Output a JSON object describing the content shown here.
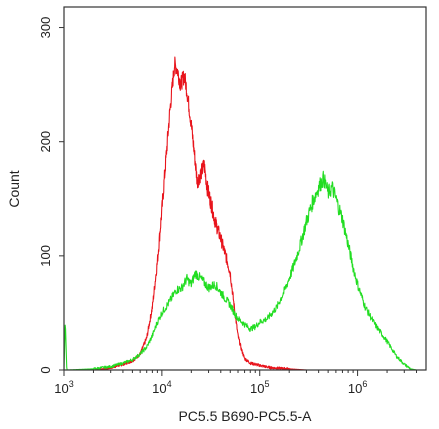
{
  "chart_data": {
    "type": "line",
    "title": "",
    "xlabel": "PC5.5 B690-PC5.5-A",
    "ylabel": "Count",
    "x_scale": "log10",
    "xlim": [
      1000,
      5000000
    ],
    "ylim": [
      0,
      318
    ],
    "x_ticks": [
      {
        "value": 1000,
        "base": "10",
        "exp": "3"
      },
      {
        "value": 10000,
        "base": "10",
        "exp": "4"
      },
      {
        "value": 100000,
        "base": "10",
        "exp": "5"
      },
      {
        "value": 1000000,
        "base": "10",
        "exp": "6"
      }
    ],
    "y_ticks": [
      {
        "value": 0,
        "label": "0"
      },
      {
        "value": 100,
        "label": "100"
      },
      {
        "value": 200,
        "label": "200"
      },
      {
        "value": 300,
        "label": "300"
      }
    ],
    "grid": false,
    "legend": "none",
    "series": [
      {
        "color": "#e8141c",
        "points": [
          [
            2000,
            0
          ],
          [
            3000,
            2
          ],
          [
            4000,
            5
          ],
          [
            5000,
            8
          ],
          [
            6000,
            14
          ],
          [
            7000,
            28
          ],
          [
            8000,
            55
          ],
          [
            9000,
            95
          ],
          [
            10000,
            140
          ],
          [
            11000,
            185
          ],
          [
            12000,
            225
          ],
          [
            13000,
            255
          ],
          [
            13500,
            268
          ],
          [
            14500,
            262
          ],
          [
            15500,
            250
          ],
          [
            17000,
            258
          ],
          [
            18000,
            245
          ],
          [
            19000,
            230
          ],
          [
            20000,
            215
          ],
          [
            21500,
            190
          ],
          [
            23000,
            165
          ],
          [
            25000,
            172
          ],
          [
            27000,
            180
          ],
          [
            29000,
            160
          ],
          [
            32000,
            145
          ],
          [
            35000,
            130
          ],
          [
            40000,
            115
          ],
          [
            45000,
            100
          ],
          [
            50000,
            85
          ],
          [
            55000,
            55
          ],
          [
            60000,
            30
          ],
          [
            65000,
            18
          ],
          [
            70000,
            10
          ],
          [
            80000,
            6
          ],
          [
            100000,
            4
          ],
          [
            130000,
            2
          ],
          [
            200000,
            1
          ],
          [
            300000,
            0
          ]
        ]
      },
      {
        "color": "#22dd22",
        "points": [
          [
            1000,
            0
          ],
          [
            1030,
            42
          ],
          [
            1070,
            0
          ],
          [
            2000,
            1
          ],
          [
            3000,
            3
          ],
          [
            4000,
            6
          ],
          [
            5000,
            9
          ],
          [
            6000,
            14
          ],
          [
            7000,
            20
          ],
          [
            8000,
            30
          ],
          [
            9000,
            42
          ],
          [
            10000,
            50
          ],
          [
            12000,
            60
          ],
          [
            14000,
            70
          ],
          [
            16000,
            72
          ],
          [
            18000,
            80
          ],
          [
            20000,
            75
          ],
          [
            22000,
            85
          ],
          [
            25000,
            80
          ],
          [
            30000,
            72
          ],
          [
            35000,
            75
          ],
          [
            40000,
            68
          ],
          [
            45000,
            62
          ],
          [
            50000,
            57
          ],
          [
            55000,
            50
          ],
          [
            60000,
            45
          ],
          [
            70000,
            40
          ],
          [
            80000,
            36
          ],
          [
            90000,
            38
          ],
          [
            100000,
            42
          ],
          [
            120000,
            45
          ],
          [
            150000,
            55
          ],
          [
            180000,
            70
          ],
          [
            220000,
            90
          ],
          [
            260000,
            110
          ],
          [
            300000,
            130
          ],
          [
            350000,
            148
          ],
          [
            400000,
            160
          ],
          [
            450000,
            168
          ],
          [
            500000,
            155
          ],
          [
            550000,
            160
          ],
          [
            600000,
            150
          ],
          [
            700000,
            132
          ],
          [
            800000,
            110
          ],
          [
            900000,
            90
          ],
          [
            1000000,
            75
          ],
          [
            1200000,
            55
          ],
          [
            1500000,
            40
          ],
          [
            2000000,
            25
          ],
          [
            2500000,
            12
          ],
          [
            3000000,
            5
          ],
          [
            3500000,
            1
          ],
          [
            4000000,
            0
          ]
        ]
      }
    ]
  }
}
